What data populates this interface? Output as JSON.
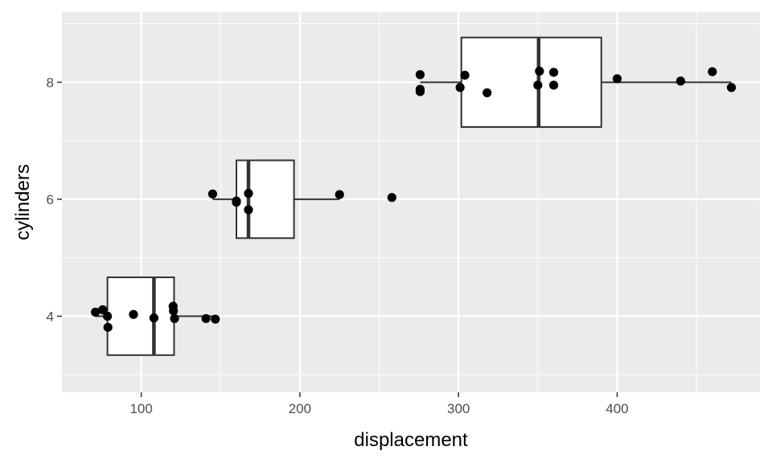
{
  "chart_data": {
    "type": "boxplot",
    "orientation": "horizontal",
    "xlabel": "displacement",
    "ylabel": "cylinders",
    "xlim": [
      50,
      490
    ],
    "ylim": [
      2.7,
      9.2
    ],
    "x_ticks": [
      100,
      200,
      300,
      400
    ],
    "y_ticks": [
      4,
      6,
      8
    ],
    "grid": true,
    "legend": "none",
    "colors": {
      "panel": "#ebebeb",
      "grid": "#ffffff",
      "box_fill": "#ffffff",
      "box_stroke": "#333333",
      "point": "#000000",
      "tick_label": "#4d4d4d"
    },
    "boxes": [
      {
        "group": 4,
        "whisker_low": 71,
        "q1": 78.7,
        "median": 108,
        "q3": 120.7,
        "whisker_high": 146.7,
        "width": 1.33
      },
      {
        "group": 6,
        "whisker_low": 145,
        "q1": 160,
        "median": 167.6,
        "q3": 196.3,
        "whisker_high": 225,
        "width": 1.33
      },
      {
        "group": 8,
        "whisker_low": 275.8,
        "q1": 301.8,
        "median": 350.5,
        "q3": 390,
        "whisker_high": 472,
        "width": 1.53
      }
    ],
    "points": [
      {
        "x": 71.1,
        "y": 4.07
      },
      {
        "x": 75.7,
        "y": 4.11
      },
      {
        "x": 78.7,
        "y": 4.0
      },
      {
        "x": 79,
        "y": 3.81
      },
      {
        "x": 95.1,
        "y": 4.03
      },
      {
        "x": 108,
        "y": 3.97
      },
      {
        "x": 120.1,
        "y": 4.17
      },
      {
        "x": 120.3,
        "y": 4.09
      },
      {
        "x": 121,
        "y": 3.96
      },
      {
        "x": 140.8,
        "y": 3.96
      },
      {
        "x": 146.7,
        "y": 3.95
      },
      {
        "x": 145,
        "y": 6.09
      },
      {
        "x": 160,
        "y": 5.97
      },
      {
        "x": 160,
        "y": 5.95
      },
      {
        "x": 167.6,
        "y": 6.1
      },
      {
        "x": 167.6,
        "y": 5.82
      },
      {
        "x": 225,
        "y": 6.08
      },
      {
        "x": 258,
        "y": 6.03
      },
      {
        "x": 275.8,
        "y": 8.13
      },
      {
        "x": 275.8,
        "y": 7.88
      },
      {
        "x": 275.8,
        "y": 7.84
      },
      {
        "x": 301,
        "y": 7.91
      },
      {
        "x": 304,
        "y": 8.12
      },
      {
        "x": 318,
        "y": 7.82
      },
      {
        "x": 350,
        "y": 7.95
      },
      {
        "x": 351,
        "y": 8.19
      },
      {
        "x": 360,
        "y": 8.17
      },
      {
        "x": 360,
        "y": 7.95
      },
      {
        "x": 400,
        "y": 8.06
      },
      {
        "x": 440,
        "y": 8.02
      },
      {
        "x": 460,
        "y": 8.18
      },
      {
        "x": 472,
        "y": 7.91
      }
    ]
  }
}
